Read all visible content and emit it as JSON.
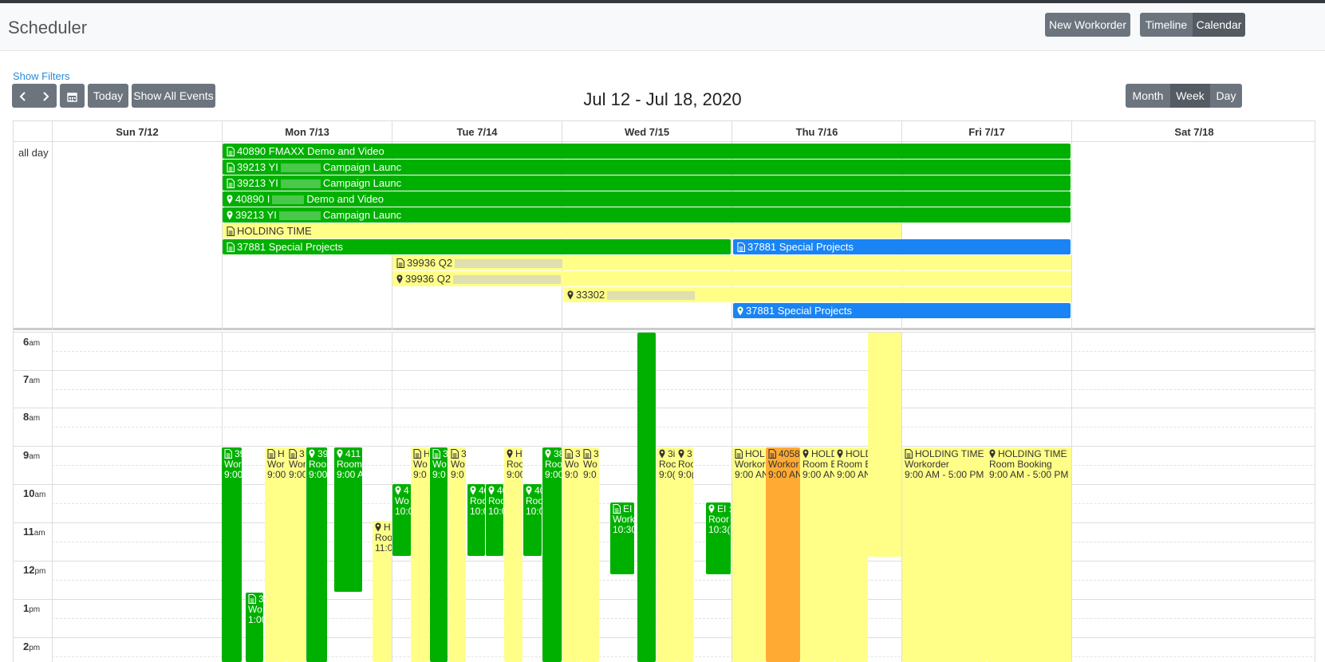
{
  "app": {
    "title": "Scheduler"
  },
  "header_buttons": {
    "new_workorder": "New Workorder",
    "timeline": "Timeline",
    "calendar": "Calendar"
  },
  "filters": {
    "show_filters": "Show Filters"
  },
  "toolbar": {
    "today": "Today",
    "show_all": "Show All Events",
    "range_title": "Jul 12 - Jul 18, 2020",
    "views": {
      "month": "Month",
      "week": "Week",
      "day": "Day"
    }
  },
  "days": [
    "Sun 7/12",
    "Mon 7/13",
    "Tue 7/14",
    "Wed 7/15",
    "Thu 7/16",
    "Fri 7/17",
    "Sat 7/18"
  ],
  "allday_label": "all day",
  "allday_events": [
    {
      "text": "40890 FMAXX Demo and Video",
      "icon": "doc",
      "color": "green"
    },
    {
      "text": "39213 YI",
      "text2": "Campaign Launc",
      "icon": "doc",
      "color": "green"
    },
    {
      "text": "39213 YI",
      "text2": "Campaign Launc",
      "icon": "doc",
      "color": "green"
    },
    {
      "text": "40890 I",
      "text2": "Demo and Video",
      "icon": "pin",
      "color": "green"
    },
    {
      "text": "39213 YI",
      "text2": "Campaign Launc",
      "icon": "pin",
      "color": "green"
    },
    {
      "text": "HOLDING TIME",
      "icon": "doc",
      "color": "yellow"
    },
    {
      "text": "37881 Special Projects",
      "icon": "doc",
      "color": "green"
    },
    {
      "text": "37881 Special Projects",
      "icon": "doc",
      "color": "blue"
    },
    {
      "text": "39936 Q2",
      "icon": "doc",
      "color": "yellow"
    },
    {
      "text": "39936 Q2",
      "icon": "pin",
      "color": "yellow"
    },
    {
      "text": "33302",
      "icon": "pin",
      "color": "yellow"
    },
    {
      "text": "37881 Special Projects",
      "icon": "pin",
      "color": "blue"
    }
  ],
  "hours": [
    {
      "num": "6",
      "ampm": "am"
    },
    {
      "num": "7",
      "ampm": "am"
    },
    {
      "num": "8",
      "ampm": "am"
    },
    {
      "num": "9",
      "ampm": "am"
    },
    {
      "num": "10",
      "ampm": "am"
    },
    {
      "num": "11",
      "ampm": "am"
    },
    {
      "num": "12",
      "ampm": "pm"
    },
    {
      "num": "1",
      "ampm": "pm"
    },
    {
      "num": "2",
      "ampm": "pm"
    }
  ],
  "timed_events": [
    {
      "l1": "39",
      "l2": "Wor",
      "l3": "9:00",
      "icon": "doc",
      "color": "green"
    },
    {
      "l1": "3",
      "l2": "Wo",
      "l3": "1:00",
      "icon": "doc",
      "color": "green"
    },
    {
      "l1": "H",
      "l2": "Wor",
      "l3": "9:00",
      "icon": "doc",
      "color": "yellow"
    },
    {
      "l1": "3",
      "l2": "Wor",
      "l3": "9:00",
      "icon": "doc",
      "color": "yellow"
    },
    {
      "l1": "39",
      "l2": "Roo",
      "l3": "9:00",
      "icon": "pin",
      "color": "green"
    },
    {
      "l1": "411",
      "l2": "Room",
      "l3": "9:00 A",
      "icon": "pin",
      "color": "green"
    },
    {
      "l1": "H",
      "l2": "Roo",
      "l3": "11:0",
      "icon": "pin",
      "color": "yellow"
    },
    {
      "l1": "4",
      "l2": "Wo",
      "l3": "10:0",
      "icon": "pin",
      "color": "green"
    },
    {
      "l1": "H",
      "l2": "Wo",
      "l3": "9:0",
      "icon": "doc",
      "color": "yellow"
    },
    {
      "l1": "3",
      "l2": "Wo",
      "l3": "9:0",
      "icon": "doc",
      "color": "green"
    },
    {
      "l1": "3",
      "l2": "Wo",
      "l3": "9:0",
      "icon": "doc",
      "color": "yellow"
    },
    {
      "l1": "40",
      "l2": "Roo",
      "l3": "10:0",
      "icon": "pin",
      "color": "green"
    },
    {
      "l1": "40",
      "l2": "Roo",
      "l3": "10:0",
      "icon": "pin",
      "color": "green"
    },
    {
      "l1": "H",
      "l2": "Roo",
      "l3": "9:00",
      "icon": "pin",
      "color": "yellow"
    },
    {
      "l1": "40",
      "l2": "Roo",
      "l3": "10:0",
      "icon": "pin",
      "color": "green"
    },
    {
      "l1": "38",
      "l2": "Roo",
      "l3": "9:00",
      "icon": "pin",
      "color": "green"
    },
    {
      "l1": "3",
      "l2": "Wo",
      "l3": "9:0",
      "icon": "doc",
      "color": "yellow"
    },
    {
      "l1": "3",
      "l2": "Wo",
      "l3": "9:0",
      "icon": "doc",
      "color": "yellow"
    },
    {
      "l1": "EI",
      "l2": "Work",
      "l3": "10:30",
      "icon": "doc",
      "color": "green"
    },
    {
      "l1": "",
      "l2": "",
      "l3": "",
      "icon": "none",
      "color": "green"
    },
    {
      "l1": "3i",
      "l2": "Roc",
      "l3": "9:0(",
      "icon": "pin",
      "color": "yellow"
    },
    {
      "l1": "3",
      "l2": "Roc",
      "l3": "9:0(",
      "icon": "pin",
      "color": "yellow"
    },
    {
      "l1": "EI :",
      "l2": "Roor",
      "l3": "10:3(",
      "icon": "pin",
      "color": "green"
    },
    {
      "l1": "HOL",
      "l2": "Workor",
      "l3": "9:00 AN",
      "icon": "doc",
      "color": "yellow"
    },
    {
      "l1": "4058",
      "l2": "Workor",
      "l3": "9:00 AN",
      "icon": "doc",
      "color": "orange"
    },
    {
      "l1": "HOLD",
      "l2": "Room B",
      "l3": "9:00 AN",
      "icon": "pin",
      "color": "yellow"
    },
    {
      "l1": "HOLD",
      "l2": "Room B",
      "l3": "9:00 AN",
      "icon": "pin",
      "color": "yellow"
    },
    {
      "l1": "",
      "l2": "",
      "l3": "",
      "icon": "none",
      "color": "yellow"
    },
    {
      "l1": "HOLDING TIME",
      "l2": "Workorder",
      "l3": "9:00 AM - 5:00 PM",
      "icon": "doc",
      "color": "yellow"
    },
    {
      "l1": "HOLDING TIME",
      "l2": "Room Booking",
      "l3": "9:00 AM - 5:00 PM",
      "icon": "pin",
      "color": "yellow"
    }
  ]
}
